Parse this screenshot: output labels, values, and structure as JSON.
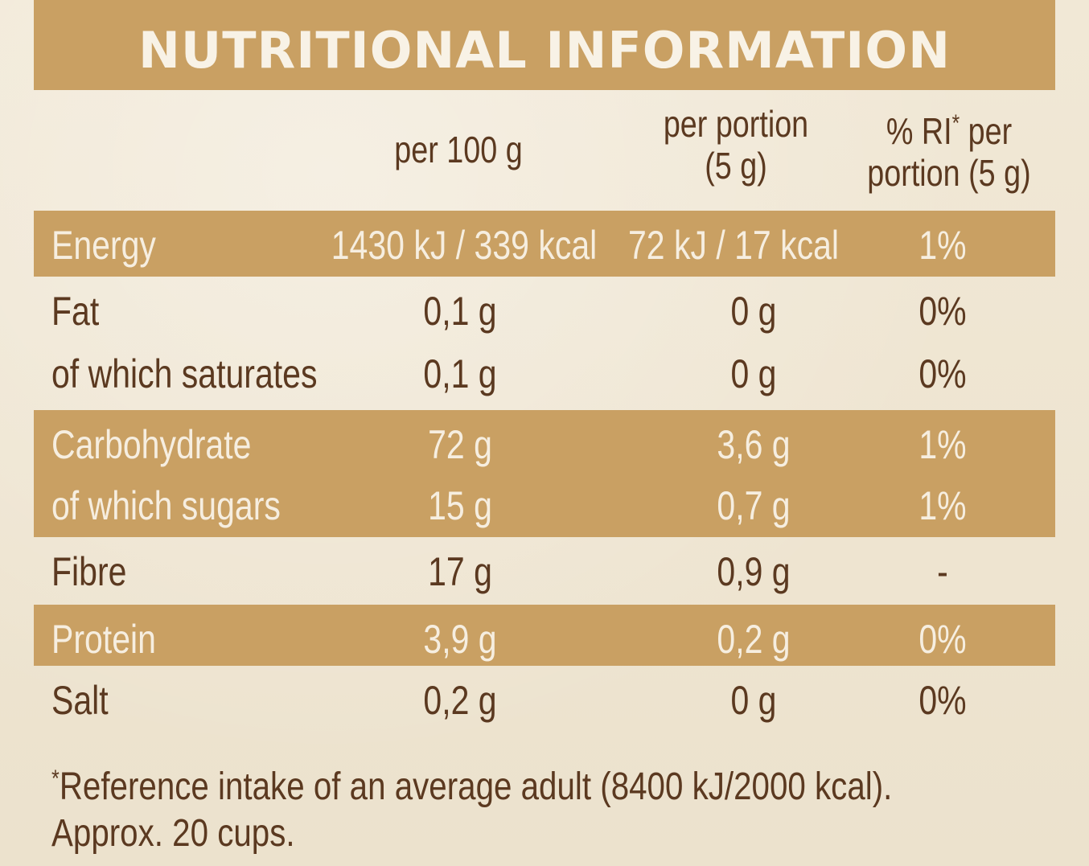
{
  "title": "NUTRITIONAL INFORMATION",
  "headers": {
    "per100": "per 100 g",
    "per_portion_line1": "per portion",
    "per_portion_line2": "(5 g)",
    "ri_line1_a": "% RI",
    "ri_star": "*",
    "ri_line1_b": " per",
    "ri_line2": "portion (5 g)"
  },
  "rows": [
    {
      "name": "Energy",
      "per100": "1430 kJ / 339 kcal",
      "portion": "72 kJ / 17 kcal",
      "ri": "1%",
      "shaded": true
    },
    {
      "name": "Fat",
      "per100": "0,1 g",
      "portion": "0 g",
      "ri": "0%",
      "shaded": false
    },
    {
      "name": "of which saturates",
      "per100": "0,1 g",
      "portion": "0 g",
      "ri": "0%",
      "shaded": false
    },
    {
      "name": "Carbohydrate",
      "per100": "72 g",
      "portion": "3,6 g",
      "ri": "1%",
      "shaded": true
    },
    {
      "name": "of which sugars",
      "per100": "15 g",
      "portion": "0,7 g",
      "ri": "1%",
      "shaded": true
    },
    {
      "name": "Fibre",
      "per100": "17 g",
      "portion": "0,9 g",
      "ri": "-",
      "shaded": false
    },
    {
      "name": "Protein",
      "per100": "3,9 g",
      "portion": "0,2 g",
      "ri": "0%",
      "shaded": true
    },
    {
      "name": "Salt",
      "per100": "0,2 g",
      "portion": "0 g",
      "ri": "0%",
      "shaded": false
    }
  ],
  "footnote": {
    "star": "*",
    "line1": "Reference intake of an average adult (8400 kJ/2000 kcal).",
    "line2": "Approx. 20 cups."
  }
}
